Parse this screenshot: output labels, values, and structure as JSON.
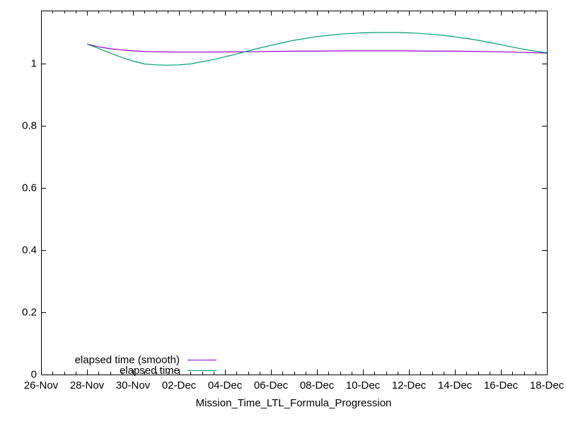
{
  "window": {
    "background": "#ffffff",
    "axis_color": "#000000"
  },
  "chart_data": {
    "type": "line",
    "title": "",
    "xlabel": "Mission_Time_LTL_Formula_Progression",
    "ylabel": "",
    "grid": false,
    "legend_position": "inside-bottom-left",
    "x_axis": {
      "tick_labels": [
        "26-Nov",
        "28-Nov",
        "30-Nov",
        "02-Dec",
        "04-Dec",
        "06-Dec",
        "08-Dec",
        "10-Dec",
        "12-Dec",
        "14-Dec",
        "16-Dec",
        "18-Dec"
      ],
      "tick_days": [
        0,
        2,
        4,
        6,
        8,
        10,
        12,
        14,
        16,
        18,
        20,
        22
      ],
      "range_days": [
        0,
        22
      ],
      "minor_tick_interval_days": 0.5
    },
    "y_axis": {
      "tick_labels": [
        "0",
        "0.2",
        "0.4",
        "0.6",
        "0.8",
        "1"
      ],
      "tick_values": [
        0,
        0.2,
        0.4,
        0.6,
        0.8,
        1
      ],
      "range": [
        0,
        1.1705
      ]
    },
    "series": [
      {
        "name": "elapsed time (smooth)",
        "color": "#9400d3",
        "x": [
          2,
          2.5,
          3,
          3.5,
          4,
          4.5,
          5,
          5.5,
          6,
          7,
          8,
          9,
          10,
          11,
          12,
          13,
          14,
          15,
          16,
          17,
          18,
          19,
          20,
          21,
          21.5,
          22
        ],
        "y": [
          1.063,
          1.054,
          1.048,
          1.044,
          1.041,
          1.039,
          1.038,
          1.0375,
          1.037,
          1.037,
          1.0375,
          1.038,
          1.039,
          1.04,
          1.04,
          1.041,
          1.041,
          1.041,
          1.041,
          1.04,
          1.04,
          1.039,
          1.038,
          1.036,
          1.035,
          1.034
        ]
      },
      {
        "name": "elapsed time",
        "color": "#009e73",
        "x": [
          2,
          2.5,
          3,
          3.5,
          4,
          4.5,
          5,
          5.5,
          6,
          6.5,
          7,
          7.5,
          8,
          8.5,
          9,
          9.5,
          10,
          10.5,
          11,
          11.5,
          12,
          12.5,
          13,
          13.5,
          14,
          14.5,
          15,
          15.5,
          16,
          16.5,
          17,
          17.5,
          18,
          18.5,
          19,
          19.5,
          20,
          20.5,
          21,
          21.5,
          22
        ],
        "y": [
          1.063,
          1.049,
          1.034,
          1.02,
          1.008,
          0.999,
          0.996,
          0.995,
          0.996,
          0.999,
          1.006,
          1.013,
          1.022,
          1.031,
          1.041,
          1.05,
          1.059,
          1.067,
          1.075,
          1.081,
          1.087,
          1.091,
          1.095,
          1.097,
          1.099,
          1.1,
          1.1,
          1.1,
          1.099,
          1.097,
          1.094,
          1.091,
          1.086,
          1.081,
          1.075,
          1.068,
          1.061,
          1.053,
          1.046,
          1.04,
          1.035
        ]
      }
    ]
  }
}
